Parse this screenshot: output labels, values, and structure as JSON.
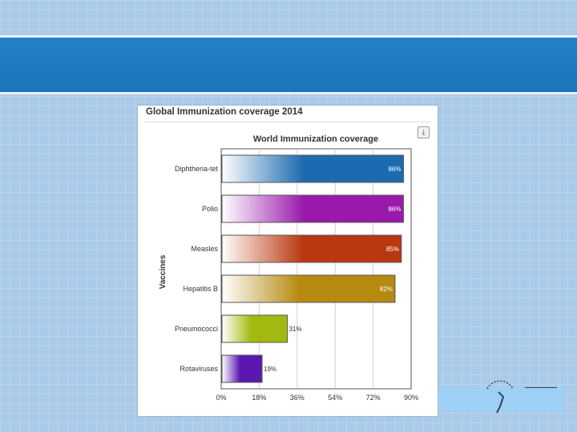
{
  "card": {
    "title": "Global Immunization coverage 2014"
  },
  "chart_data": {
    "type": "bar",
    "orientation": "horizontal",
    "title": "World Immunization coverage",
    "xlabel": "",
    "ylabel": "Vaccines",
    "categories": [
      "Diphtheria-tet",
      "Polio",
      "Measles",
      "Hepatitis B",
      "Pneumococci",
      "Rotaviruses"
    ],
    "values": [
      86,
      86,
      85,
      82,
      31,
      19
    ],
    "data_labels": [
      "86%",
      "86%",
      "85%",
      "82%",
      "31%",
      "19%"
    ],
    "xlim": [
      0,
      90
    ],
    "xticks": [
      "0%",
      "18%",
      "36%",
      "54%",
      "72%",
      "90%"
    ],
    "grid": true,
    "colors": [
      "#1c6bb0",
      "#9a1aad",
      "#b9380f",
      "#b6890f",
      "#a3b90f",
      "#5b18b0"
    ]
  },
  "icons": {
    "download": "download-icon",
    "logo": "emblem-logo"
  }
}
